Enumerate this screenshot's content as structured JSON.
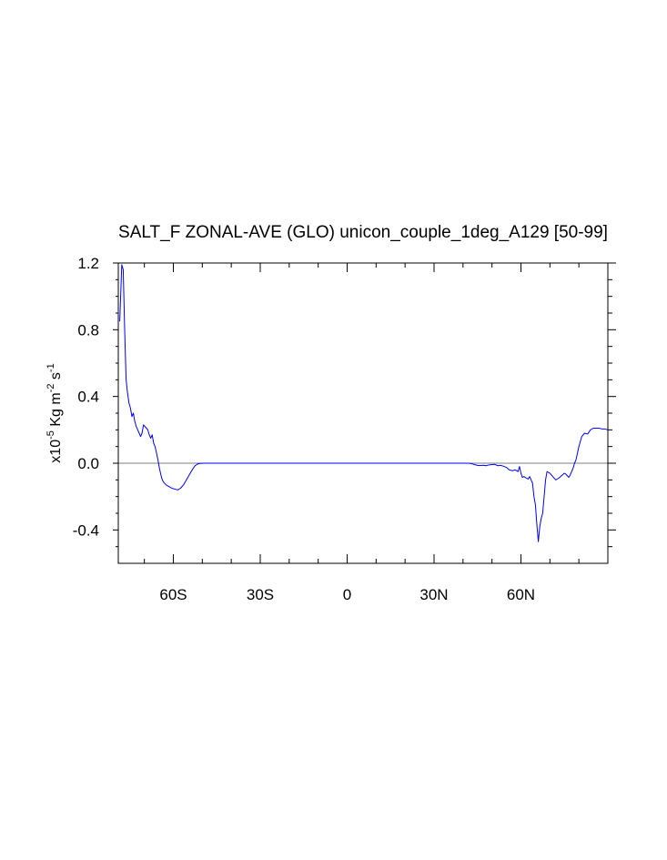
{
  "chart_data": {
    "type": "line",
    "title": "SALT_F ZONAL-AVE (GLO) unicon_couple_1deg_A129 [50-99]",
    "ylabel": {
      "prefix": "x10",
      "exp": "-5",
      "units_a": " Kg m",
      "units_exp_a": "-2",
      "units_b": " s",
      "units_exp_b": "-1"
    },
    "xlabel": "",
    "xlim": [
      -79,
      90
    ],
    "ylim": [
      -0.6,
      1.2
    ],
    "x_ticks": [
      {
        "value": -60,
        "label": "60S"
      },
      {
        "value": -30,
        "label": "30S"
      },
      {
        "value": 0,
        "label": "0"
      },
      {
        "value": 30,
        "label": "30N"
      },
      {
        "value": 60,
        "label": "60N"
      }
    ],
    "y_ticks": [
      {
        "value": 1.2,
        "label": "1.2"
      },
      {
        "value": 0.8,
        "label": "0.8"
      },
      {
        "value": 0.4,
        "label": "0.4"
      },
      {
        "value": 0.0,
        "label": "0.0"
      },
      {
        "value": -0.4,
        "label": "-0.4"
      }
    ],
    "reference_line": 0.0,
    "series": [
      {
        "color": "#0000ff",
        "x": [
          -78.5,
          -77.8,
          -77.3,
          -76.8,
          -76.3,
          -75.8,
          -75.3,
          -74.8,
          -74.3,
          -73.8,
          -73.3,
          -72.8,
          -72.3,
          -71.8,
          -71.3,
          -70.8,
          -70.3,
          -69.8,
          -69.3,
          -68.8,
          -68.3,
          -67.8,
          -67.3,
          -66.8,
          -66.3,
          -65.8,
          -65.3,
          -64.8,
          -64.3,
          -63.8,
          -63.3,
          -62.5,
          -61.5,
          -60.5,
          -59.5,
          -58.5,
          -57.5,
          -56.5,
          -55.5,
          -54.5,
          -53.5,
          -52.5,
          -51.5,
          -50.5,
          -49.5,
          -45,
          -40,
          -30,
          -20,
          -10,
          0,
          10,
          20,
          30,
          40,
          42,
          43,
          44,
          45,
          46,
          47,
          48,
          49,
          50,
          51,
          52,
          53,
          54,
          55,
          56,
          57,
          58,
          59,
          59.5,
          60,
          60.5,
          61,
          62,
          62.5,
          63,
          63.5,
          64,
          64.5,
          65,
          65.5,
          66,
          66.5,
          67,
          67.5,
          68,
          68.5,
          69,
          70,
          71,
          72,
          73,
          74,
          75,
          75.5,
          76,
          76.5,
          77,
          77.5,
          78,
          78.5,
          79,
          79.5,
          80,
          81,
          82,
          83,
          84,
          85,
          86,
          87,
          88,
          89,
          90
        ],
        "y": [
          0.85,
          1.19,
          1.16,
          0.8,
          0.5,
          0.42,
          0.36,
          0.33,
          0.28,
          0.3,
          0.25,
          0.22,
          0.2,
          0.18,
          0.16,
          0.18,
          0.23,
          0.22,
          0.21,
          0.2,
          0.17,
          0.15,
          0.17,
          0.12,
          0.1,
          0.06,
          0.02,
          -0.03,
          -0.07,
          -0.1,
          -0.115,
          -0.13,
          -0.14,
          -0.15,
          -0.155,
          -0.16,
          -0.15,
          -0.13,
          -0.1,
          -0.07,
          -0.04,
          -0.015,
          -0.004,
          -0.001,
          0.0,
          0.0,
          0.0,
          0.0,
          0.0,
          0.0,
          0.0,
          0.0,
          0.0,
          0.0,
          0.0,
          0.0,
          -0.003,
          -0.008,
          -0.013,
          -0.014,
          -0.012,
          -0.015,
          -0.01,
          -0.008,
          -0.007,
          -0.015,
          -0.013,
          -0.018,
          -0.025,
          -0.04,
          -0.045,
          -0.04,
          -0.05,
          -0.02,
          -0.06,
          -0.085,
          -0.08,
          -0.09,
          -0.095,
          -0.08,
          -0.1,
          -0.12,
          -0.2,
          -0.25,
          -0.37,
          -0.47,
          -0.38,
          -0.33,
          -0.3,
          -0.2,
          -0.1,
          -0.05,
          -0.06,
          -0.08,
          -0.1,
          -0.09,
          -0.075,
          -0.06,
          -0.065,
          -0.075,
          -0.085,
          -0.07,
          -0.05,
          -0.03,
          0.0,
          0.02,
          0.06,
          0.1,
          0.16,
          0.18,
          0.175,
          0.2,
          0.21,
          0.21,
          0.21,
          0.205,
          0.205,
          0.2
        ]
      }
    ]
  }
}
